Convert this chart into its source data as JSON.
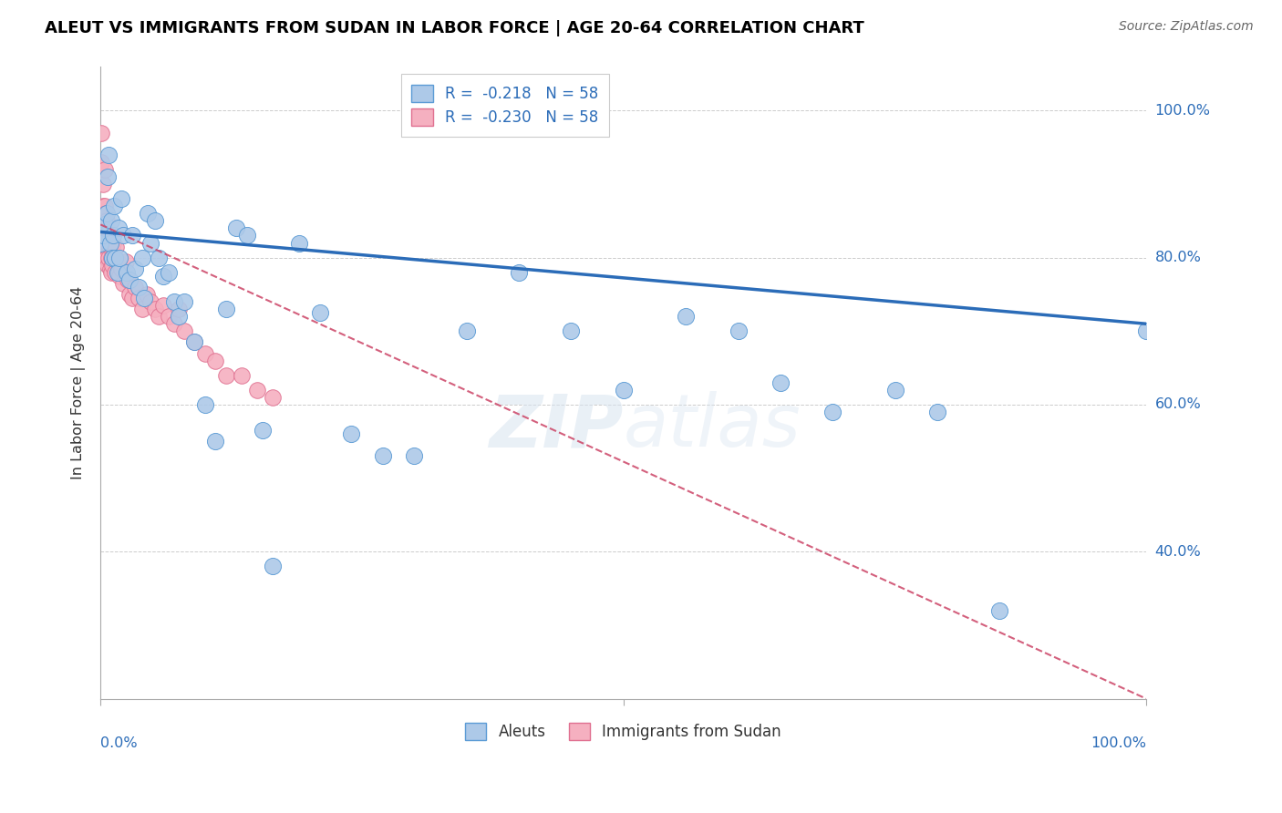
{
  "title": "ALEUT VS IMMIGRANTS FROM SUDAN IN LABOR FORCE | AGE 20-64 CORRELATION CHART",
  "source": "Source: ZipAtlas.com",
  "ylabel": "In Labor Force | Age 20-64",
  "ylim": [
    0.2,
    1.06
  ],
  "xlim": [
    0.0,
    1.0
  ],
  "r_aleut": -0.218,
  "r_sudan": -0.23,
  "n_aleut": 58,
  "n_sudan": 58,
  "aleut_color": "#adc9e8",
  "sudan_color": "#f5b0c0",
  "aleut_edge_color": "#5b9bd5",
  "sudan_edge_color": "#e07090",
  "aleut_line_color": "#2b6cb8",
  "sudan_line_color": "#cc4466",
  "background_color": "#ffffff",
  "aleut_x": [
    0.0,
    0.002,
    0.004,
    0.006,
    0.007,
    0.008,
    0.009,
    0.01,
    0.011,
    0.012,
    0.013,
    0.014,
    0.016,
    0.017,
    0.018,
    0.02,
    0.022,
    0.025,
    0.028,
    0.03,
    0.033,
    0.036,
    0.04,
    0.042,
    0.045,
    0.048,
    0.052,
    0.056,
    0.06,
    0.065,
    0.07,
    0.075,
    0.08,
    0.09,
    0.1,
    0.11,
    0.12,
    0.13,
    0.14,
    0.155,
    0.165,
    0.19,
    0.21,
    0.24,
    0.27,
    0.3,
    0.35,
    0.4,
    0.45,
    0.5,
    0.56,
    0.61,
    0.65,
    0.7,
    0.76,
    0.8,
    0.86,
    1.0
  ],
  "aleut_y": [
    0.82,
    0.83,
    0.845,
    0.86,
    0.91,
    0.94,
    0.82,
    0.85,
    0.8,
    0.83,
    0.87,
    0.8,
    0.78,
    0.84,
    0.8,
    0.88,
    0.83,
    0.78,
    0.77,
    0.83,
    0.785,
    0.76,
    0.8,
    0.745,
    0.86,
    0.82,
    0.85,
    0.8,
    0.775,
    0.78,
    0.74,
    0.72,
    0.74,
    0.685,
    0.6,
    0.55,
    0.73,
    0.84,
    0.83,
    0.565,
    0.38,
    0.82,
    0.725,
    0.56,
    0.53,
    0.53,
    0.7,
    0.78,
    0.7,
    0.62,
    0.72,
    0.7,
    0.63,
    0.59,
    0.62,
    0.59,
    0.32,
    0.7
  ],
  "sudan_x": [
    0.0,
    0.001,
    0.001,
    0.002,
    0.002,
    0.003,
    0.003,
    0.004,
    0.004,
    0.005,
    0.005,
    0.005,
    0.006,
    0.006,
    0.006,
    0.007,
    0.007,
    0.008,
    0.008,
    0.009,
    0.009,
    0.01,
    0.01,
    0.01,
    0.011,
    0.011,
    0.012,
    0.013,
    0.014,
    0.015,
    0.016,
    0.017,
    0.018,
    0.02,
    0.022,
    0.024,
    0.026,
    0.028,
    0.03,
    0.033,
    0.036,
    0.04,
    0.044,
    0.048,
    0.052,
    0.056,
    0.06,
    0.065,
    0.07,
    0.075,
    0.08,
    0.09,
    0.1,
    0.11,
    0.12,
    0.135,
    0.15,
    0.165
  ],
  "sudan_y": [
    0.83,
    0.97,
    0.93,
    0.9,
    0.87,
    0.85,
    0.82,
    0.92,
    0.87,
    0.86,
    0.82,
    0.8,
    0.85,
    0.82,
    0.8,
    0.82,
    0.79,
    0.835,
    0.8,
    0.815,
    0.785,
    0.825,
    0.8,
    0.78,
    0.815,
    0.79,
    0.82,
    0.8,
    0.78,
    0.815,
    0.795,
    0.78,
    0.775,
    0.785,
    0.765,
    0.795,
    0.77,
    0.75,
    0.745,
    0.76,
    0.745,
    0.73,
    0.75,
    0.74,
    0.73,
    0.72,
    0.735,
    0.72,
    0.71,
    0.73,
    0.7,
    0.685,
    0.67,
    0.66,
    0.64,
    0.64,
    0.62,
    0.61
  ],
  "yticks": [
    0.4,
    0.6,
    0.8,
    1.0
  ],
  "ytick_labels": [
    "40.0%",
    "60.0%",
    "80.0%",
    "100.0%"
  ],
  "aleut_line_x": [
    0.0,
    1.0
  ],
  "aleut_line_y_start": 0.835,
  "aleut_line_y_end": 0.71,
  "sudan_line_y_start": 0.845,
  "sudan_line_y_end": 0.2
}
